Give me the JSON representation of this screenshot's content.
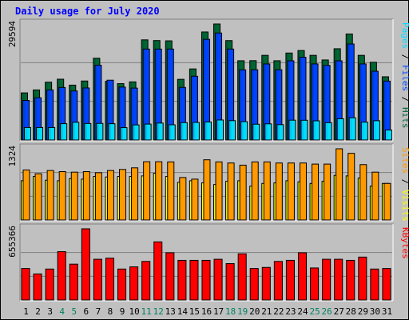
{
  "colors": {
    "background": "#c0c0c0",
    "panel": "#c0c0c0",
    "title": "#0000ff",
    "hits": "#006633",
    "files": "#0044ff",
    "pages": "#00ddff",
    "visits": "#ffff00",
    "sites": "#ff9900",
    "kbytes": "#ff0000",
    "weekend_day_label": "#008060",
    "weekday_label": "#000000"
  },
  "chart_data": {
    "type": "bar",
    "title": "Daily usage for July 2020",
    "categories": [
      "1",
      "2",
      "3",
      "4",
      "5",
      "6",
      "7",
      "8",
      "9",
      "10",
      "11",
      "12",
      "13",
      "14",
      "15",
      "16",
      "17",
      "18",
      "19",
      "20",
      "21",
      "22",
      "23",
      "24",
      "25",
      "26",
      "27",
      "28",
      "29",
      "30",
      "31"
    ],
    "weekend_days": [
      "4",
      "5",
      "11",
      "12",
      "18",
      "19",
      "25",
      "26"
    ],
    "panels": [
      {
        "id": "traffic",
        "max_label": "29594",
        "ylim": [
          0,
          29594
        ],
        "legend": [
          {
            "text": "Pages",
            "color": "#00ddff"
          },
          {
            "text": " / ",
            "color": "#000000"
          },
          {
            "text": "Files",
            "color": "#0044ff"
          },
          {
            "text": " / ",
            "color": "#000000"
          },
          {
            "text": "Hits",
            "color": "#006633"
          }
        ],
        "series": [
          {
            "name": "Hits",
            "color": "#006633",
            "values": [
              12020,
              12770,
              14750,
              15510,
              14000,
              15050,
              20860,
              14970,
              14380,
              14830,
              25550,
              25370,
              25300,
              15480,
              18130,
              27560,
              29594,
              25360,
              20220,
              20240,
              21600,
              20220,
              22190,
              22830,
              21600,
              20420,
              23280,
              27040,
              21600,
              19830,
              16130
            ]
          },
          {
            "name": "Files",
            "color": "#0044ff",
            "values": [
              10100,
              10780,
              12770,
              13400,
              12520,
              13270,
              19080,
              15260,
              13500,
              13240,
              23200,
              23200,
              23200,
              13420,
              16260,
              25690,
              27290,
              23200,
              17900,
              17920,
              19400,
              17920,
              20200,
              21120,
              19400,
              19040,
              20200,
              24490,
              19400,
              17540,
              15020
            ]
          },
          {
            "name": "Pages",
            "color": "#00ddff",
            "values": [
              3180,
              3180,
              3180,
              4160,
              4520,
              4210,
              4240,
              4150,
              3150,
              3850,
              4060,
              4320,
              3880,
              4440,
              4480,
              4590,
              5110,
              4940,
              4680,
              4030,
              4120,
              3920,
              5060,
              5040,
              4890,
              4420,
              5420,
              5660,
              4550,
              4920,
              2550
            ]
          }
        ]
      },
      {
        "id": "visitors",
        "max_label": "1324",
        "ylim": [
          0,
          1324
        ],
        "legend": [
          {
            "text": "Sites",
            "color": "#ff9900"
          },
          {
            "text": " / ",
            "color": "#000000"
          },
          {
            "text": "Visits",
            "color": "#ffff00"
          }
        ],
        "series": [
          {
            "name": "Sites",
            "color": "#ff9900",
            "values": [
              930,
              860,
              920,
              900,
              890,
              900,
              880,
              920,
              940,
              970,
              1084,
              1084,
              1080,
              790,
              760,
              1120,
              1080,
              1060,
              1020,
              1080,
              1080,
              1060,
              1060,
              1060,
              1040,
              1040,
              1324,
              1240,
              1030,
              890,
              680
            ]
          },
          {
            "name": "Visits",
            "color": "#ffff00",
            "values": [
              730,
              810,
              740,
              730,
              770,
              760,
              810,
              800,
              810,
              810,
              820,
              870,
              810,
              700,
              730,
              690,
              660,
              720,
              730,
              630,
              680,
              690,
              730,
              710,
              680,
              720,
              830,
              820,
              780,
              630,
              680
            ]
          }
        ]
      },
      {
        "id": "volume",
        "max_label": "655366",
        "ylim": [
          0,
          655366
        ],
        "legend": [
          {
            "text": "KBytes",
            "color": "#ff0000"
          }
        ],
        "series": [
          {
            "name": "KBytes",
            "color": "#ff0000",
            "values": [
              290000,
              240000,
              285000,
              445000,
              330000,
              655366,
              375000,
              385000,
              285000,
              305000,
              355000,
              535000,
              435000,
              365000,
              365000,
              365000,
              375000,
              335000,
              425000,
              290000,
              300000,
              355000,
              365000,
              435000,
              295000,
              375000,
              375000,
              365000,
              395000,
              285000,
              290000
            ]
          }
        ]
      }
    ]
  }
}
